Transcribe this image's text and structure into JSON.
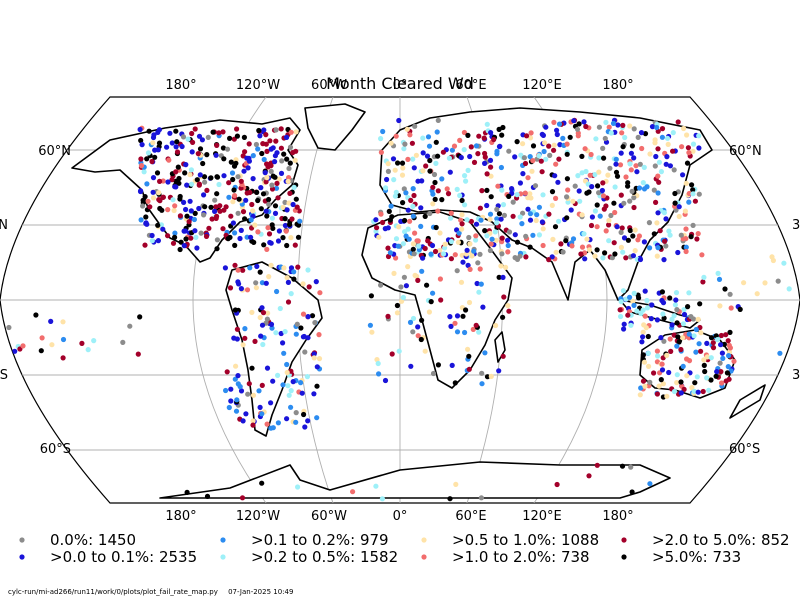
{
  "title": "Month Cleared Wd",
  "projection": "Robinson (world, 0° centred)",
  "lon_ticks_top": [
    "180°",
    "120°W",
    "60°W",
    "0°",
    "60°E",
    "120°E",
    "180°"
  ],
  "lon_ticks_bottom": [
    "180°",
    "120°W",
    "60°W",
    "0°",
    "60°E",
    "120°E",
    "180°"
  ],
  "lat_ticks": {
    "left": [
      "60°N",
      "N",
      "S",
      "60°S"
    ],
    "right": [
      "60°N",
      "3",
      "3",
      "60°S"
    ]
  },
  "legend": [
    {
      "label": "0.0%: 1450",
      "color": "#8c8c8c",
      "icon": "dot"
    },
    {
      "label": ">0.0 to 0.1%: 2535",
      "color": "#1a14d9",
      "icon": "dot"
    },
    {
      "label": ">0.1 to 0.2%: 979",
      "color": "#2c8cf0",
      "icon": "dot"
    },
    {
      "label": ">0.2 to 0.5%: 1582",
      "color": "#9ef0f8",
      "icon": "dot"
    },
    {
      "label": ">0.5 to 1.0%: 1088",
      "color": "#ffe3a8",
      "icon": "dot"
    },
    {
      "label": ">1.0 to 2.0%: 738",
      "color": "#f26d6d",
      "icon": "dot"
    },
    {
      "label": ">2.0 to 5.0%: 852",
      "color": "#a3002a",
      "icon": "dot"
    },
    {
      "label": ">5.0%: 733",
      "color": "#000000",
      "icon": "dot"
    }
  ],
  "footer": {
    "path": "cylc-run/mi-ad266/run11/work/0/plots/plot_fail_rate_map.py",
    "timestamp": "07-Jan-2025 10:49"
  },
  "colors": {
    "coast": "#000000",
    "grid": "#b0b0b0",
    "frame": "#000000"
  }
}
